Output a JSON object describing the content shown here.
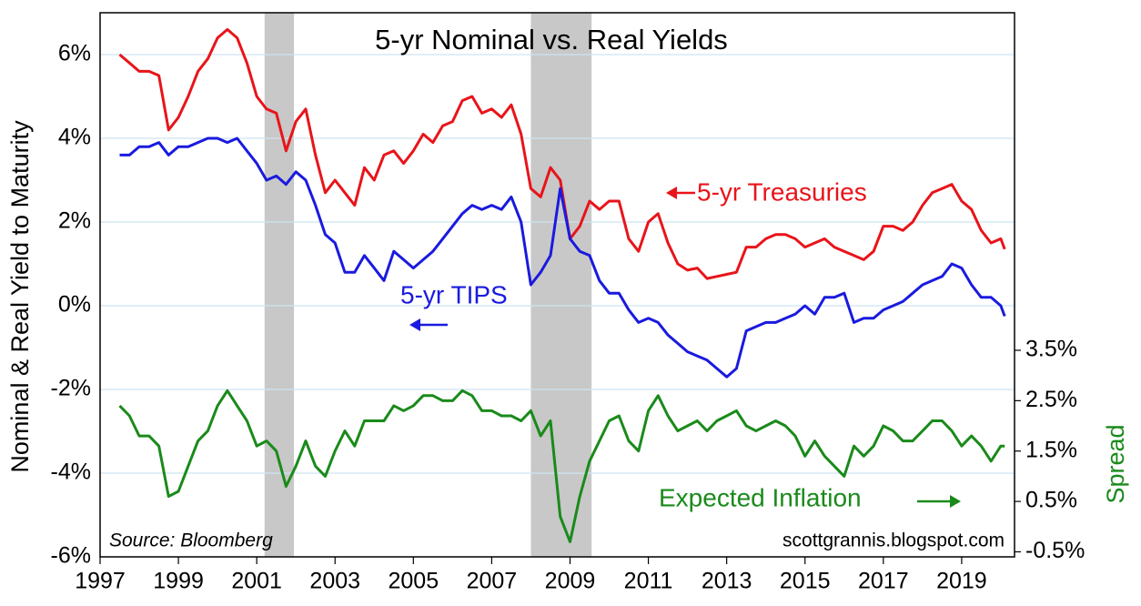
{
  "chart_data": {
    "type": "line",
    "title": "5-yr Nominal vs. Real Yields",
    "y_label": "Nominal & Real Yield to Maturity",
    "y2_label": "Spread",
    "source": "Source: Bloomberg",
    "credit": "scottgrannis.blogspot.com",
    "annotations": [
      "5-yr Treasuries",
      "5-yr TIPS",
      "Expected Inflation"
    ],
    "grid": true,
    "xlim": [
      1997,
      2020.35
    ],
    "xticks": [
      1997,
      1999,
      2001,
      2003,
      2005,
      2007,
      2009,
      2011,
      2013,
      2015,
      2017,
      2019
    ],
    "ylim": [
      -6,
      7
    ],
    "yticks": [
      {
        "value": -6,
        "label": "-6%"
      },
      {
        "value": -4,
        "label": "-4%"
      },
      {
        "value": -2,
        "label": "-2%"
      },
      {
        "value": 0,
        "label": "0%"
      },
      {
        "value": 2,
        "label": "2%"
      },
      {
        "value": 4,
        "label": "4%"
      },
      {
        "value": 6,
        "label": "6%"
      }
    ],
    "y2lim": [
      -0.6,
      10.2
    ],
    "y2ticks": [
      {
        "value": -0.5,
        "label": "-0.5%"
      },
      {
        "value": 0.5,
        "label": "0.5%"
      },
      {
        "value": 1.5,
        "label": "1.5%"
      },
      {
        "value": 2.5,
        "label": "2.5%"
      },
      {
        "value": 3.5,
        "label": "3.5%"
      }
    ],
    "shaded_periods": [
      [
        2001.2,
        2001.95
      ],
      [
        2008.0,
        2009.55
      ]
    ],
    "shade_color": "#c8c8c8",
    "x": [
      1997.5,
      1997.75,
      1998,
      1998.25,
      1998.5,
      1998.75,
      1999,
      1999.25,
      1999.5,
      1999.75,
      2000,
      2000.25,
      2000.5,
      2000.75,
      2001,
      2001.25,
      2001.5,
      2001.75,
      2002,
      2002.25,
      2002.5,
      2002.75,
      2003,
      2003.25,
      2003.5,
      2003.75,
      2004,
      2004.25,
      2004.5,
      2004.75,
      2005,
      2005.25,
      2005.5,
      2005.75,
      2006,
      2006.25,
      2006.5,
      2006.75,
      2007,
      2007.25,
      2007.5,
      2007.75,
      2008,
      2008.25,
      2008.5,
      2008.75,
      2009,
      2009.25,
      2009.5,
      2009.75,
      2010,
      2010.25,
      2010.5,
      2010.75,
      2011,
      2011.25,
      2011.5,
      2011.75,
      2012,
      2012.25,
      2012.5,
      2012.75,
      2013,
      2013.25,
      2013.5,
      2013.75,
      2014,
      2014.25,
      2014.5,
      2014.75,
      2015,
      2015.25,
      2015.5,
      2015.75,
      2016,
      2016.25,
      2016.5,
      2016.75,
      2017,
      2017.25,
      2017.5,
      2017.75,
      2018,
      2018.25,
      2018.5,
      2018.75,
      2019,
      2019.25,
      2019.5,
      2019.75,
      2020,
      2020.1
    ],
    "series": [
      {
        "name": "5-yr Treasuries",
        "color": "#e8141a",
        "values": [
          6.0,
          5.8,
          5.6,
          5.6,
          5.5,
          4.2,
          4.5,
          5.0,
          5.6,
          5.9,
          6.4,
          6.6,
          6.4,
          5.8,
          5.0,
          4.7,
          4.6,
          3.7,
          4.4,
          4.7,
          3.6,
          2.7,
          3.0,
          2.7,
          2.4,
          3.3,
          3.0,
          3.6,
          3.7,
          3.4,
          3.7,
          4.1,
          3.9,
          4.3,
          4.4,
          4.9,
          5.0,
          4.6,
          4.7,
          4.5,
          4.8,
          4.1,
          2.8,
          2.6,
          3.3,
          3.0,
          1.6,
          1.9,
          2.5,
          2.3,
          2.5,
          2.5,
          1.6,
          1.3,
          2.0,
          2.2,
          1.5,
          1.0,
          0.85,
          0.9,
          0.65,
          0.7,
          0.75,
          0.8,
          1.4,
          1.4,
          1.6,
          1.7,
          1.7,
          1.6,
          1.4,
          1.5,
          1.6,
          1.4,
          1.3,
          1.2,
          1.1,
          1.3,
          1.9,
          1.9,
          1.8,
          2.0,
          2.4,
          2.7,
          2.8,
          2.9,
          2.5,
          2.3,
          1.8,
          1.5,
          1.6,
          1.35
        ]
      },
      {
        "name": "5-yr TIPS",
        "color": "#1a1adf",
        "values": [
          3.6,
          3.6,
          3.8,
          3.8,
          3.9,
          3.6,
          3.8,
          3.8,
          3.9,
          4.0,
          4.0,
          3.9,
          4.0,
          3.7,
          3.4,
          3.0,
          3.1,
          2.9,
          3.2,
          3.0,
          2.4,
          1.7,
          1.5,
          0.8,
          0.8,
          1.2,
          0.9,
          0.6,
          1.3,
          1.1,
          0.9,
          1.1,
          1.3,
          1.6,
          1.9,
          2.2,
          2.4,
          2.3,
          2.4,
          2.3,
          2.6,
          2.0,
          0.5,
          0.8,
          1.2,
          2.8,
          1.6,
          1.3,
          1.2,
          0.6,
          0.3,
          0.3,
          -0.1,
          -0.4,
          -0.3,
          -0.4,
          -0.7,
          -0.9,
          -1.1,
          -1.2,
          -1.3,
          -1.5,
          -1.7,
          -1.5,
          -0.6,
          -0.5,
          -0.4,
          -0.4,
          -0.3,
          -0.2,
          0.0,
          -0.2,
          0.2,
          0.2,
          0.3,
          -0.4,
          -0.3,
          -0.3,
          -0.1,
          0.0,
          0.1,
          0.3,
          0.5,
          0.6,
          0.7,
          1.0,
          0.9,
          0.5,
          0.2,
          0.2,
          0.0,
          -0.25
        ]
      },
      {
        "name": "Expected Inflation",
        "color": "#1a8a1a",
        "axis": "y2",
        "values": [
          2.4,
          2.2,
          1.8,
          1.8,
          1.6,
          0.6,
          0.7,
          1.2,
          1.7,
          1.9,
          2.4,
          2.7,
          2.4,
          2.1,
          1.6,
          1.7,
          1.5,
          0.8,
          1.2,
          1.7,
          1.2,
          1.0,
          1.5,
          1.9,
          1.6,
          2.1,
          2.1,
          2.1,
          2.4,
          2.3,
          2.4,
          2.6,
          2.6,
          2.5,
          2.5,
          2.7,
          2.6,
          2.3,
          2.3,
          2.2,
          2.2,
          2.1,
          2.3,
          1.8,
          2.1,
          0.2,
          -0.3,
          0.6,
          1.3,
          1.7,
          2.1,
          2.2,
          1.7,
          1.5,
          2.3,
          2.6,
          2.2,
          1.9,
          2.0,
          2.1,
          1.9,
          2.1,
          2.2,
          2.3,
          2.0,
          1.9,
          2.0,
          2.1,
          2.0,
          1.8,
          1.4,
          1.7,
          1.4,
          1.2,
          1.0,
          1.6,
          1.4,
          1.6,
          2.0,
          1.9,
          1.7,
          1.7,
          1.9,
          2.1,
          2.1,
          1.9,
          1.6,
          1.8,
          1.6,
          1.3,
          1.6,
          1.6
        ]
      }
    ]
  }
}
